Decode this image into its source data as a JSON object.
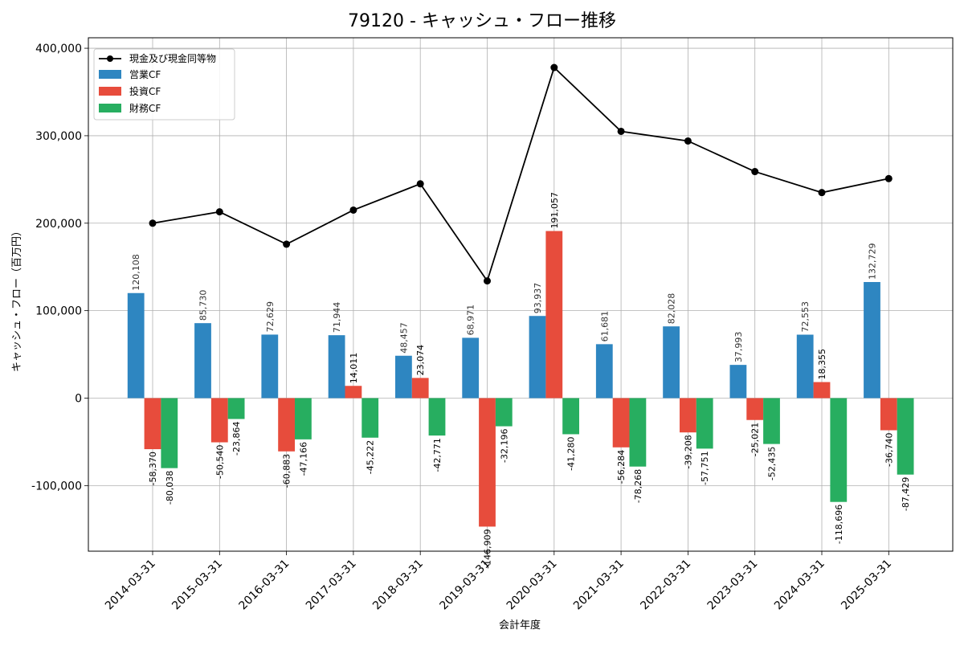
{
  "chart_data": {
    "type": "bar",
    "title": "79120 - キャッシュ・フロー推移",
    "xlabel": "会計年度",
    "ylabel": "キャッシュ・フロー（百万円）",
    "ylim": [
      -175000,
      412000
    ],
    "yticks": [
      -100000,
      0,
      100000,
      200000,
      300000,
      400000
    ],
    "ytick_labels": [
      "-100,000",
      "0",
      "100,000",
      "200,000",
      "300,000",
      "400,000"
    ],
    "grid": true,
    "legend_position": "top-left",
    "categories": [
      "2014-03-31",
      "2015-03-31",
      "2016-03-31",
      "2017-03-31",
      "2018-03-31",
      "2019-03-31",
      "2020-03-31",
      "2021-03-31",
      "2022-03-31",
      "2023-03-31",
      "2024-03-31",
      "2025-03-31"
    ],
    "line_series": {
      "name": "現金及び現金同等物",
      "color": "#000000",
      "values": [
        200000,
        213000,
        176000,
        215000,
        245000,
        134000,
        378000,
        305000,
        294000,
        259000,
        235000,
        251000
      ]
    },
    "series": [
      {
        "name": "営業CF",
        "color": "#2e86c1",
        "label_color": "#333333",
        "values": [
          120108,
          85730,
          72629,
          71944,
          48457,
          68971,
          93937,
          61681,
          82028,
          37993,
          72553,
          132729
        ],
        "labels": [
          "120,108",
          "85,730",
          "72,629",
          "71,944",
          "48,457",
          "68,971",
          "93,937",
          "61,681",
          "82,028",
          "37,993",
          "72,553",
          "132,729"
        ]
      },
      {
        "name": "投資CF",
        "color": "#e74c3c",
        "label_color": "#000000",
        "values": [
          -58370,
          -50540,
          -60883,
          14011,
          23074,
          -146909,
          191057,
          -56284,
          -39208,
          -25021,
          18355,
          -36740
        ],
        "labels": [
          "-58,370",
          "-50,540",
          "-60,883",
          "14,011",
          "23,074",
          "-146,909",
          "191,057",
          "-56,284",
          "-39,208",
          "-25,021",
          "18,355",
          "-36,740"
        ]
      },
      {
        "name": "財務CF",
        "color": "#27ae60",
        "label_color": "#000000",
        "values": [
          -80038,
          -23864,
          -47166,
          -45222,
          -42771,
          -32196,
          -41280,
          -78268,
          -57751,
          -52435,
          -118696,
          -87429
        ],
        "labels": [
          "-80,038",
          "-23,864",
          "-47,166",
          "-45,222",
          "-42,771",
          "-32,196",
          "-41,280",
          "-78,268",
          "-57,751",
          "-52,435",
          "-118,696",
          "-87,429"
        ]
      }
    ]
  }
}
